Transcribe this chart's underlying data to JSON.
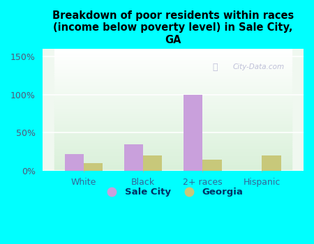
{
  "categories": [
    "White",
    "Black",
    "2+ races",
    "Hispanic"
  ],
  "sale_city_values": [
    22,
    35,
    100,
    0
  ],
  "georgia_values": [
    10,
    20,
    15,
    20
  ],
  "sale_city_color": "#c9a0dc",
  "georgia_color": "#c8c87a",
  "title": "Breakdown of poor residents within races\n(income below poverty level) in Sale City,\nGA",
  "title_fontsize": 10.5,
  "title_fontweight": "bold",
  "ylim": [
    0,
    160
  ],
  "yticks": [
    0,
    50,
    100,
    150
  ],
  "ytick_labels": [
    "0%",
    "50%",
    "100%",
    "150%"
  ],
  "background_color": "#00ffff",
  "bar_width": 0.32,
  "legend_sale_city": "Sale City",
  "legend_georgia": "Georgia",
  "watermark": "City-Data.com",
  "tick_color": "#555577",
  "label_color": "#336699",
  "grid_color": "#ffffff"
}
